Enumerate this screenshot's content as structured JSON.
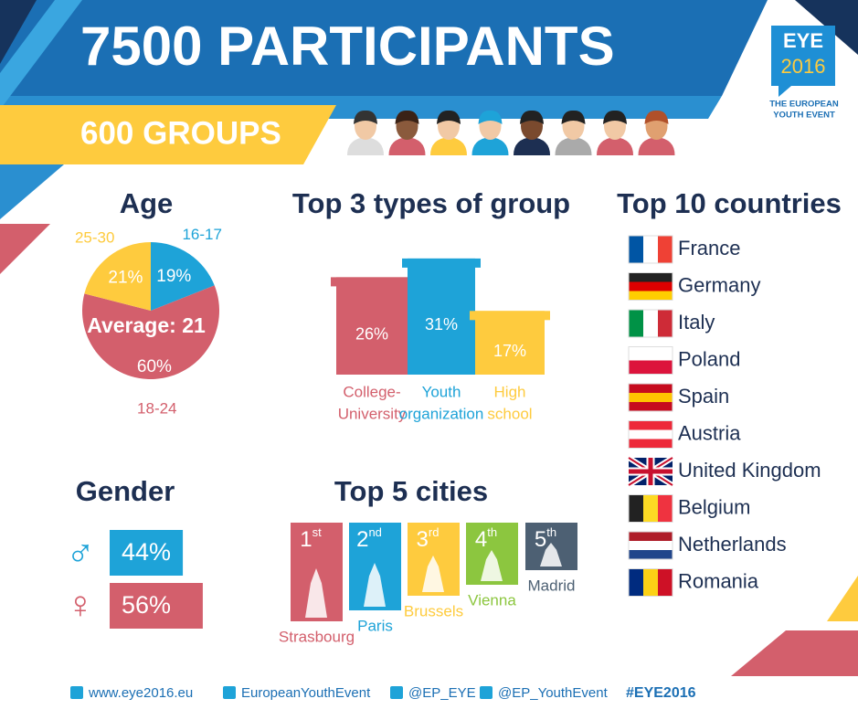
{
  "header": {
    "title": "7500 PARTICIPANTS",
    "subtitle": "600 GROUPS",
    "logo": {
      "name": "EYE",
      "year": "2016",
      "tagline": [
        "THE EUROPEAN",
        "YOUTH EVENT"
      ]
    }
  },
  "age": {
    "title": "Age",
    "center_label": "Average: 21",
    "slices": [
      {
        "name": "16-17",
        "value": 19,
        "label": "19%",
        "color": "#1ea3d8"
      },
      {
        "name": "18-24",
        "value": 60,
        "label": "60%",
        "color": "#d35f6c"
      },
      {
        "name": "25-30",
        "value": 21,
        "label": "21%",
        "color": "#fecb3e"
      }
    ]
  },
  "groups": {
    "title": "Top 3 types of group",
    "items": [
      {
        "name": [
          "College-",
          "University"
        ],
        "value": 26,
        "label": "26%",
        "color": "#d35f6c"
      },
      {
        "name": [
          "Youth",
          "organization"
        ],
        "value": 31,
        "label": "31%",
        "color": "#1ea3d8"
      },
      {
        "name": [
          "High",
          "school"
        ],
        "value": 17,
        "label": "17%",
        "color": "#fecb3e"
      }
    ]
  },
  "gender": {
    "title": "Gender",
    "items": [
      {
        "symbol": "♂",
        "value": 44,
        "label": "44%",
        "color": "#1ea3d8"
      },
      {
        "symbol": "♀",
        "value": 56,
        "label": "56%",
        "color": "#d35f6c"
      }
    ]
  },
  "cities": {
    "title": "Top 5 cities",
    "items": [
      {
        "rank": "1",
        "suffix": "st",
        "name": "Strasbourg",
        "color": "#d35f6c"
      },
      {
        "rank": "2",
        "suffix": "nd",
        "name": "Paris",
        "color": "#1ea3d8"
      },
      {
        "rank": "3",
        "suffix": "rd",
        "name": "Brussels",
        "color": "#fecb3e"
      },
      {
        "rank": "4",
        "suffix": "th",
        "name": "Vienna",
        "color": "#8cc63f"
      },
      {
        "rank": "5",
        "suffix": "th",
        "name": "Madrid",
        "color": "#4d6073"
      }
    ]
  },
  "countries": {
    "title": "Top 10 countries",
    "items": [
      "France",
      "Germany",
      "Italy",
      "Poland",
      "Spain",
      "Austria",
      "United Kingdom",
      "Belgium",
      "Netherlands",
      "Romania"
    ]
  },
  "footer": {
    "links": [
      "www.eye2016.eu",
      "EuropeanYouthEvent",
      "@EP_EYE",
      "@EP_YouthEvent"
    ],
    "hashtag": "#EYE2016"
  }
}
